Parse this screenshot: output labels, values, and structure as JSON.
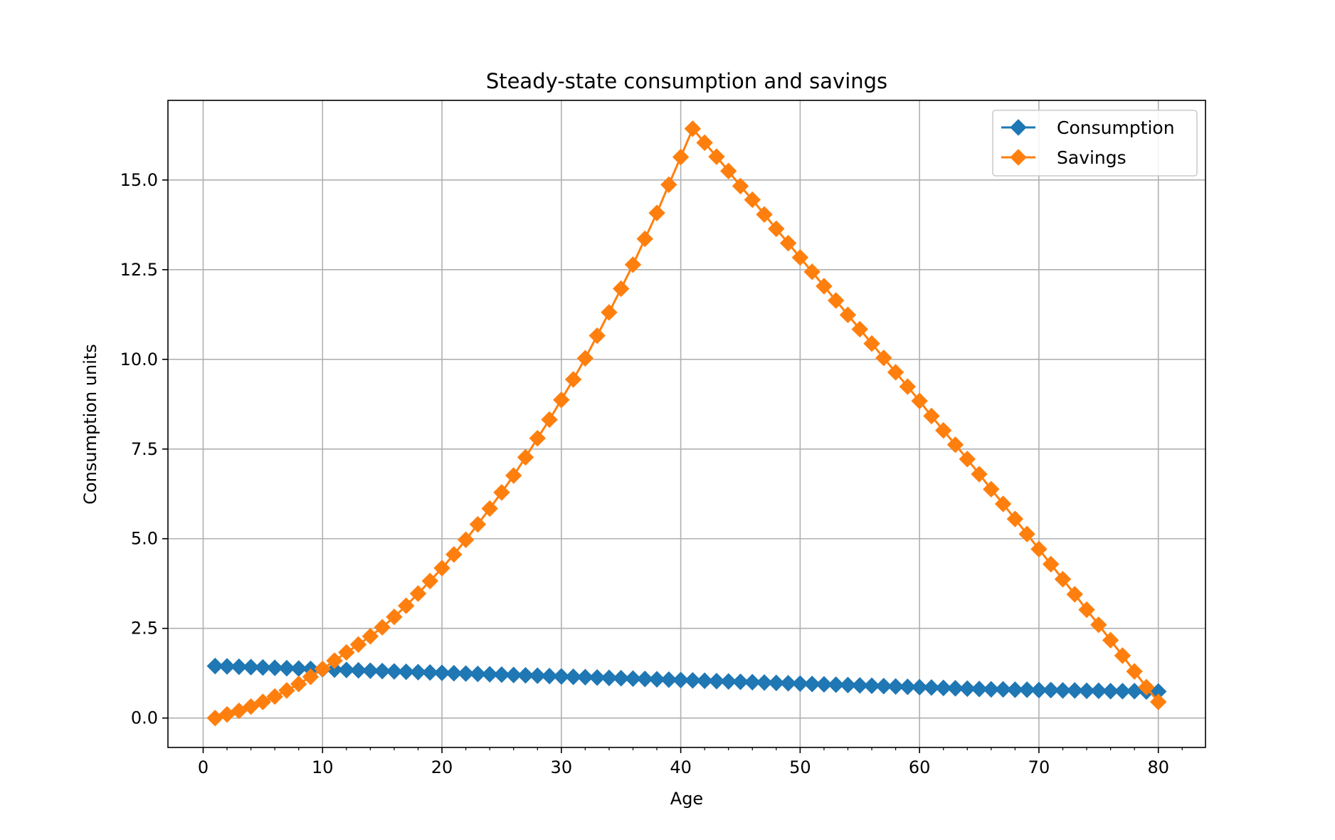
{
  "chart_data": {
    "type": "line",
    "title": "Steady-state consumption and savings",
    "xlabel": "Age",
    "ylabel": "Consumption units",
    "xlim": [
      -2.95,
      83.95
    ],
    "ylim": [
      -0.82,
      17.22
    ],
    "xticks": [
      0,
      10,
      20,
      30,
      40,
      50,
      60,
      70,
      80
    ],
    "xtick_labels": [
      "0",
      "10",
      "20",
      "30",
      "40",
      "50",
      "60",
      "70",
      "80"
    ],
    "yticks": [
      0.0,
      2.5,
      5.0,
      7.5,
      10.0,
      12.5,
      15.0
    ],
    "ytick_labels": [
      "0.0",
      "2.5",
      "5.0",
      "7.5",
      "10.0",
      "12.5",
      "15.0"
    ],
    "grid": true,
    "legend_position": "upper right",
    "marker": "diamond",
    "x": [
      1,
      2,
      3,
      4,
      5,
      6,
      7,
      8,
      9,
      10,
      11,
      12,
      13,
      14,
      15,
      16,
      17,
      18,
      19,
      20,
      21,
      22,
      23,
      24,
      25,
      26,
      27,
      28,
      29,
      30,
      31,
      32,
      33,
      34,
      35,
      36,
      37,
      38,
      39,
      40,
      41,
      42,
      43,
      44,
      45,
      46,
      47,
      48,
      49,
      50,
      51,
      52,
      53,
      54,
      55,
      56,
      57,
      58,
      59,
      60,
      61,
      62,
      63,
      64,
      65,
      66,
      67,
      68,
      69,
      70,
      71,
      72,
      73,
      74,
      75,
      76,
      77,
      78,
      79,
      80
    ],
    "series": [
      {
        "name": "Consumption",
        "color": "#1f77b4",
        "values": [
          1.45,
          1.44,
          1.43,
          1.42,
          1.41,
          1.4,
          1.39,
          1.38,
          1.37,
          1.36,
          1.35,
          1.34,
          1.33,
          1.32,
          1.31,
          1.3,
          1.29,
          1.28,
          1.27,
          1.26,
          1.25,
          1.24,
          1.23,
          1.22,
          1.21,
          1.2,
          1.19,
          1.18,
          1.17,
          1.16,
          1.15,
          1.14,
          1.13,
          1.12,
          1.11,
          1.1,
          1.09,
          1.08,
          1.07,
          1.06,
          1.05,
          1.04,
          1.03,
          1.02,
          1.01,
          1.0,
          0.99,
          0.98,
          0.97,
          0.96,
          0.95,
          0.94,
          0.93,
          0.92,
          0.91,
          0.9,
          0.89,
          0.88,
          0.87,
          0.86,
          0.85,
          0.84,
          0.83,
          0.82,
          0.81,
          0.8,
          0.8,
          0.79,
          0.79,
          0.78,
          0.78,
          0.77,
          0.77,
          0.76,
          0.76,
          0.75,
          0.75,
          0.75,
          0.74,
          0.74
        ]
      },
      {
        "name": "Savings",
        "color": "#ff7f0e",
        "values": [
          0.0,
          0.1,
          0.2,
          0.32,
          0.45,
          0.6,
          0.77,
          0.95,
          1.15,
          1.37,
          1.6,
          1.83,
          2.05,
          2.28,
          2.53,
          2.82,
          3.13,
          3.47,
          3.82,
          4.18,
          4.56,
          4.97,
          5.4,
          5.84,
          6.29,
          6.76,
          7.27,
          7.8,
          8.32,
          8.87,
          9.44,
          10.03,
          10.66,
          11.31,
          11.97,
          12.64,
          13.36,
          14.08,
          14.87,
          15.64,
          16.43,
          16.04,
          15.65,
          15.25,
          14.83,
          14.45,
          14.04,
          13.64,
          13.24,
          12.84,
          12.44,
          12.04,
          11.64,
          11.24,
          10.84,
          10.44,
          10.04,
          9.64,
          9.24,
          8.84,
          8.42,
          8.02,
          7.62,
          7.22,
          6.8,
          6.38,
          5.97,
          5.55,
          5.13,
          4.71,
          4.29,
          3.87,
          3.45,
          3.02,
          2.6,
          2.17,
          1.74,
          1.3,
          0.86,
          0.45
        ]
      }
    ]
  }
}
